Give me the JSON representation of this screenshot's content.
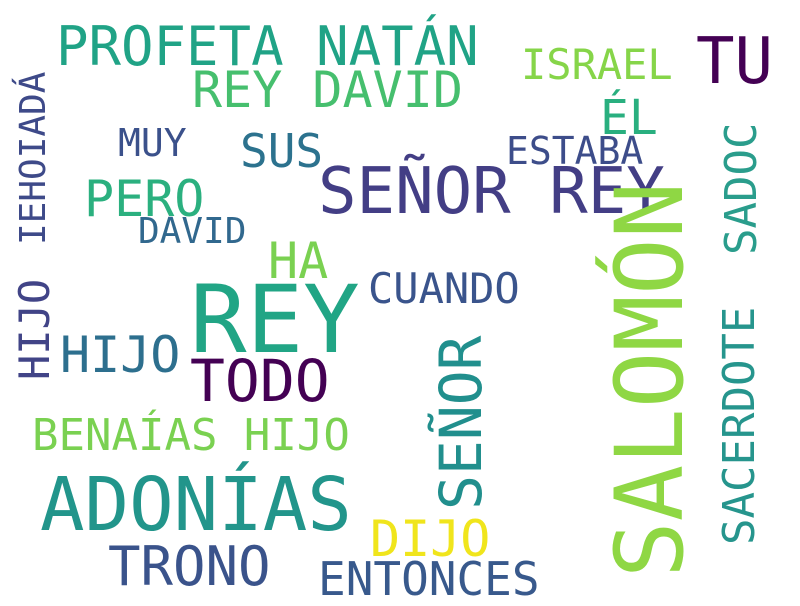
{
  "words": [
    {
      "text": "PROFETA NATÁN",
      "color": "#20a386"
    },
    {
      "text": "REY DAVID",
      "color": "#46bf6e"
    },
    {
      "text": "ISRAEL",
      "color": "#86d549"
    },
    {
      "text": "TU",
      "color": "#440154"
    },
    {
      "text": "IEHOIADÁ",
      "color": "#3e4a89"
    },
    {
      "text": "ÉL",
      "color": "#29af7f"
    },
    {
      "text": "MUY",
      "color": "#3b518b"
    },
    {
      "text": "SUS",
      "color": "#2c728e"
    },
    {
      "text": "ESTABA",
      "color": "#3d4d8a"
    },
    {
      "text": "SEÑOR REY",
      "color": "#433e85"
    },
    {
      "text": "SADOC",
      "color": "#2a9d8c"
    },
    {
      "text": "PERO",
      "color": "#2bb07f"
    },
    {
      "text": "DAVID",
      "color": "#31688e"
    },
    {
      "text": "HA",
      "color": "#7ad151"
    },
    {
      "text": "SALOMÓN",
      "color": "#8fd744"
    },
    {
      "text": "CUANDO",
      "color": "#3a548c"
    },
    {
      "text": "HIJO",
      "color": "#414487"
    },
    {
      "text": "REY",
      "color": "#21a585"
    },
    {
      "text": "HIJO",
      "color": "#2d6f8e"
    },
    {
      "text": "TODO",
      "color": "#440154"
    },
    {
      "text": "SACERDOTE",
      "color": "#26958d"
    },
    {
      "text": "SEÑOR",
      "color": "#218f8d"
    },
    {
      "text": "BENAÍAS HIJO",
      "color": "#7ad151"
    },
    {
      "text": "ADONÍAS",
      "color": "#22958b"
    },
    {
      "text": "DIJO",
      "color": "#f0e51c"
    },
    {
      "text": "TRONO",
      "color": "#3a538b"
    },
    {
      "text": "ENTONCES",
      "color": "#38598c"
    }
  ]
}
